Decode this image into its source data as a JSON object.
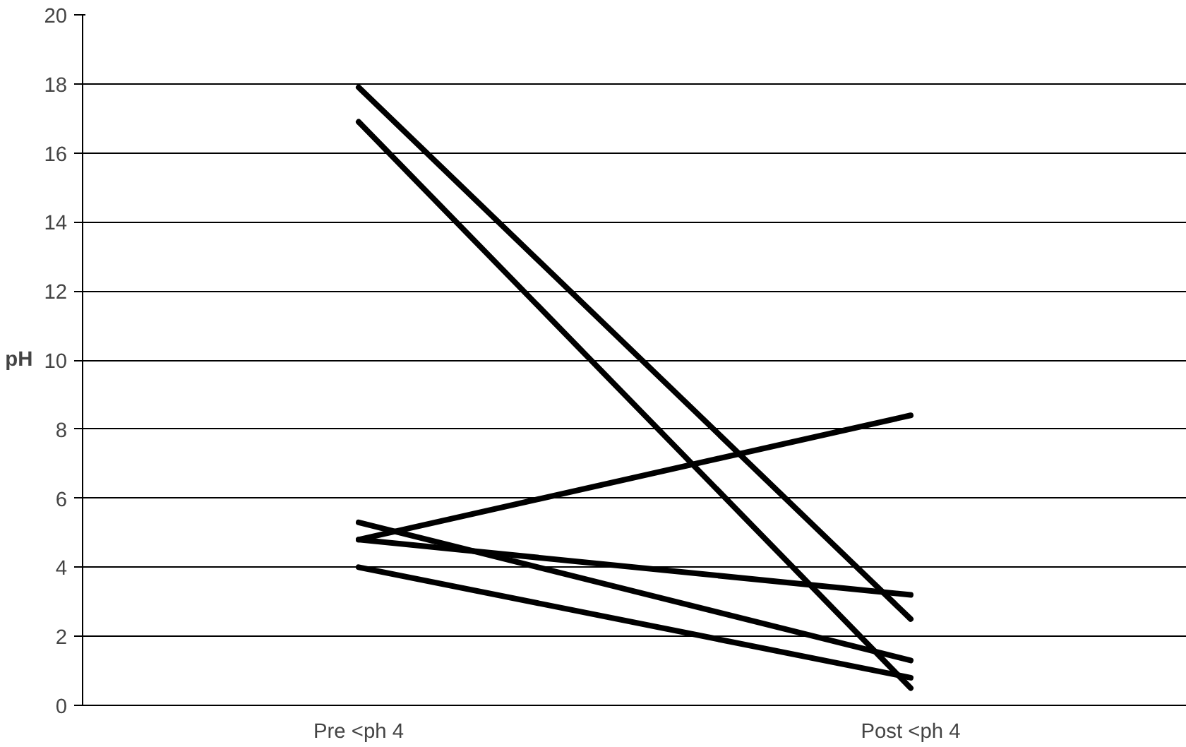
{
  "chart_data": {
    "type": "line",
    "ylabel": "pH",
    "categories": [
      "Pre <ph 4",
      "Post <ph 4"
    ],
    "series": [
      {
        "color": "#000000",
        "values": [
          17.9,
          2.5
        ]
      },
      {
        "color": "#000000",
        "values": [
          16.9,
          0.5
        ]
      },
      {
        "color": "#000000",
        "values": [
          4.8,
          8.4
        ]
      },
      {
        "color": "#000000",
        "values": [
          5.3,
          1.3
        ]
      },
      {
        "color": "#000000",
        "values": [
          4.8,
          3.2
        ]
      },
      {
        "color": "#000000",
        "values": [
          4.0,
          0.8
        ]
      }
    ],
    "ylim": [
      0,
      20
    ],
    "yticks": [
      0,
      2,
      4,
      6,
      8,
      10,
      12,
      14,
      16,
      18,
      20
    ],
    "grid": "y",
    "marker": "none",
    "line_style": "solid"
  }
}
